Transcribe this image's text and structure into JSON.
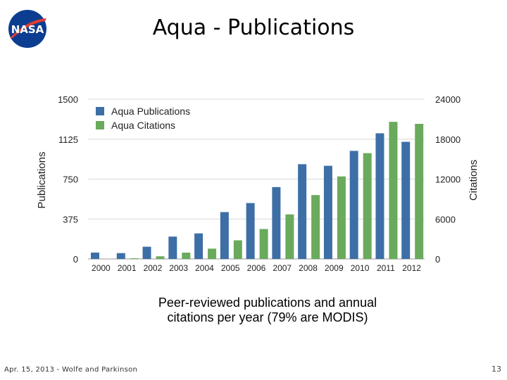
{
  "slide": {
    "title": "Aqua - Publications",
    "caption_line1": "Peer-reviewed publications and annual",
    "caption_line2": "citations per year (79% are MODIS)",
    "footer": "Apr. 15, 2013 - Wolfe and Parkinson",
    "page_number": "13",
    "logo_text": "NASA"
  },
  "colors": {
    "publications": "#3d6fa6",
    "citations": "#6aaa5c",
    "logo_blue": "#0b3d91",
    "logo_red": "#e03c31"
  },
  "chart_data": {
    "type": "bar",
    "categories": [
      "2000",
      "2001",
      "2002",
      "2003",
      "2004",
      "2005",
      "2006",
      "2007",
      "2008",
      "2009",
      "2010",
      "2011",
      "2012"
    ],
    "series": [
      {
        "name": "Aqua Publications",
        "axis": "left",
        "values": [
          60,
          55,
          115,
          210,
          240,
          440,
          525,
          675,
          890,
          875,
          1015,
          1180,
          1100
        ]
      },
      {
        "name": "Aqua Citations",
        "axis": "right",
        "values": [
          0,
          100,
          400,
          950,
          1550,
          2800,
          4500,
          6700,
          9600,
          12400,
          15900,
          20600,
          20300
        ]
      }
    ],
    "ylabel": "Publications",
    "ylabel_right": "Citations",
    "ylim": [
      0,
      1500
    ],
    "ylim_right": [
      0,
      24000
    ],
    "yticks": [
      "1500",
      "1125",
      "750",
      "375",
      "0"
    ],
    "yticks_right": [
      "24000",
      "18000",
      "12000",
      "6000",
      "0"
    ],
    "grid": true,
    "legend": "top-left"
  }
}
